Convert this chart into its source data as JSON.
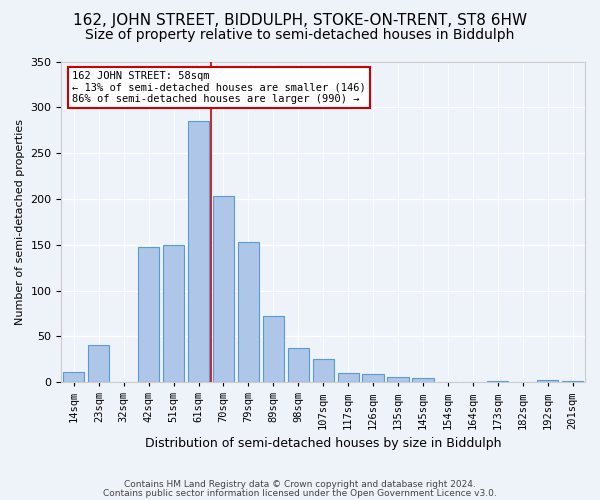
{
  "title": "162, JOHN STREET, BIDDULPH, STOKE-ON-TRENT, ST8 6HW",
  "subtitle": "Size of property relative to semi-detached houses in Biddulph",
  "xlabel": "Distribution of semi-detached houses by size in Biddulph",
  "ylabel": "Number of semi-detached properties",
  "categories": [
    "14sqm",
    "23sqm",
    "32sqm",
    "42sqm",
    "51sqm",
    "61sqm",
    "70sqm",
    "79sqm",
    "89sqm",
    "98sqm",
    "107sqm",
    "117sqm",
    "126sqm",
    "135sqm",
    "145sqm",
    "154sqm",
    "164sqm",
    "173sqm",
    "182sqm",
    "192sqm",
    "201sqm"
  ],
  "values": [
    11,
    40,
    0,
    148,
    150,
    285,
    203,
    153,
    72,
    37,
    25,
    10,
    9,
    6,
    5,
    0,
    0,
    1,
    0,
    2,
    1
  ],
  "bar_color": "#aec6e8",
  "bar_edge_color": "#5b9bd5",
  "vline_x": 5.5,
  "annotation_box_text": "162 JOHN STREET: 58sqm\n← 13% of semi-detached houses are smaller (146)\n86% of semi-detached houses are larger (990) →",
  "annotation_box_color": "#ffffff",
  "annotation_box_edge_color": "#cc0000",
  "vline_color": "#cc0000",
  "ylim": [
    0,
    350
  ],
  "yticks": [
    0,
    50,
    100,
    150,
    200,
    250,
    300,
    350
  ],
  "footer1": "Contains HM Land Registry data © Crown copyright and database right 2024.",
  "footer2": "Contains public sector information licensed under the Open Government Licence v3.0.",
  "bg_color": "#eef2f9",
  "grid_color": "#ffffff",
  "title_fontsize": 11,
  "subtitle_fontsize": 10
}
